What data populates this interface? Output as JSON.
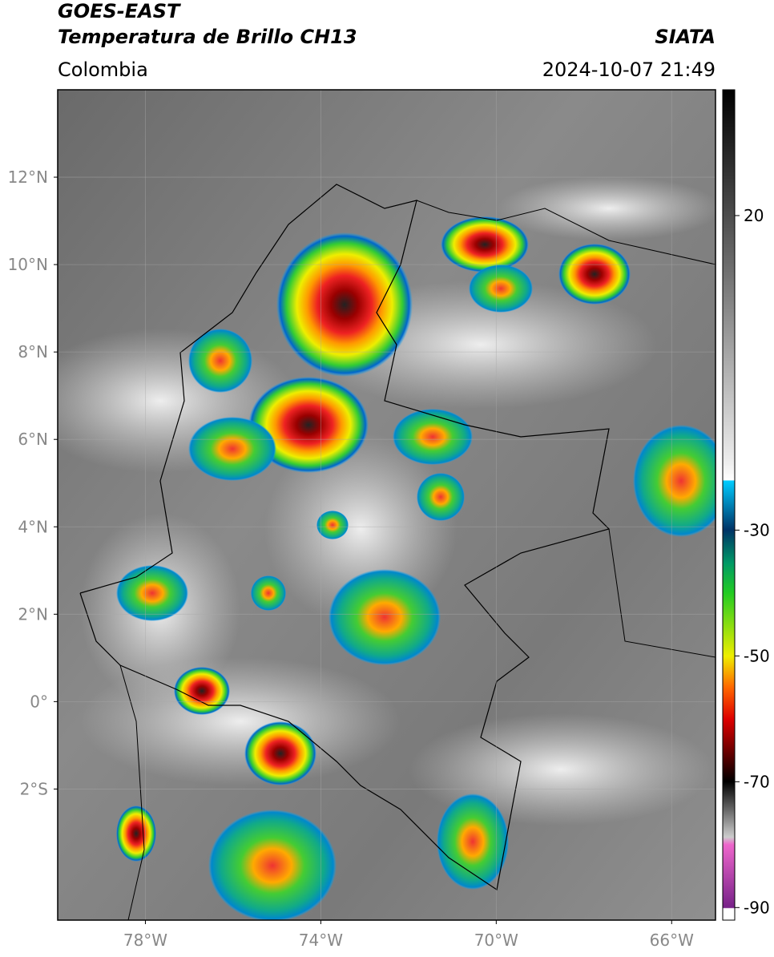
{
  "header": {
    "title": "GOES-EAST",
    "subtitle": "Temperatura de Brillo CH13",
    "credit": "SIATA",
    "region": "Colombia",
    "datetime": "2024-10-07 21:49"
  },
  "map": {
    "latlim": [
      -5,
      14
    ],
    "lonlim": [
      -80,
      -65
    ],
    "grid": true,
    "latticks": [
      {
        "value": 12,
        "label": "12°N"
      },
      {
        "value": 10,
        "label": "10°N"
      },
      {
        "value": 8,
        "label": "8°N"
      },
      {
        "value": 6,
        "label": "6°N"
      },
      {
        "value": 4,
        "label": "4°N"
      },
      {
        "value": 2,
        "label": "2°N"
      },
      {
        "value": 0,
        "label": "0°"
      },
      {
        "value": -2,
        "label": "2°S"
      }
    ],
    "lonticks": [
      {
        "value": -78,
        "label": "78°W"
      },
      {
        "value": -74,
        "label": "74°W"
      },
      {
        "value": -70,
        "label": "70°W"
      },
      {
        "value": -66,
        "label": "66°W"
      }
    ]
  },
  "colorbar": {
    "lim": [
      -92,
      40
    ],
    "ticks": [
      20,
      -30,
      -50,
      -70,
      -90
    ]
  }
}
